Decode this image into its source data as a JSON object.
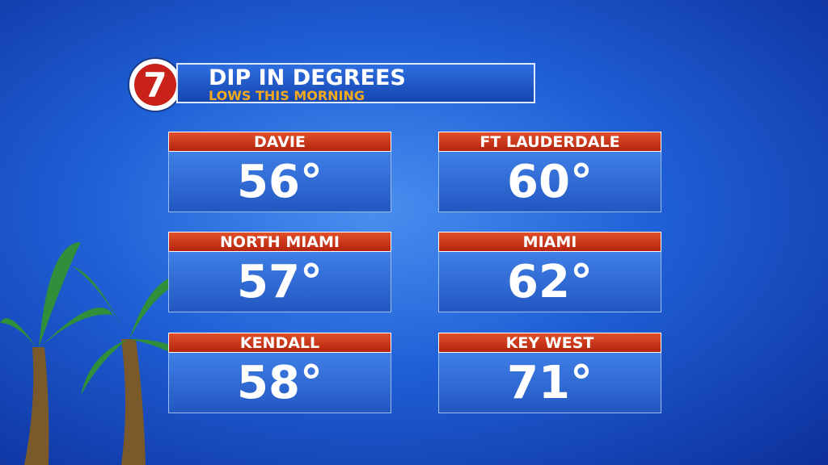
{
  "logo": "7",
  "header": {
    "title": "DIP IN DEGREES",
    "subtitle": "LOWS THIS MORNING"
  },
  "cards": [
    {
      "city": "DAVIE",
      "temp": "56°"
    },
    {
      "city": "FT LAUDERDALE",
      "temp": "60°"
    },
    {
      "city": "NORTH MIAMI",
      "temp": "57°"
    },
    {
      "city": "MIAMI",
      "temp": "62°"
    },
    {
      "city": "KENDALL",
      "temp": "58°"
    },
    {
      "city": "KEY WEST",
      "temp": "71°"
    }
  ]
}
